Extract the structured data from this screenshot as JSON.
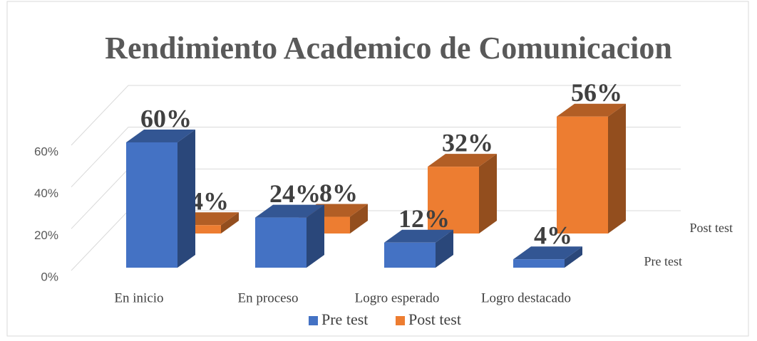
{
  "chart_data": {
    "type": "bar3d",
    "title": "Rendimiento Academico de Comunicacion",
    "categories": [
      "En inicio",
      "En proceso",
      "Logro esperado",
      "Logro destacado"
    ],
    "series": [
      {
        "name": "Pre test",
        "color": "#4472c4",
        "values": [
          60,
          24,
          12,
          4
        ],
        "value_labels": [
          "60%",
          "24%",
          "12%",
          "4%"
        ]
      },
      {
        "name": "Post test",
        "color": "#ed7d31",
        "values": [
          4,
          8,
          32,
          56
        ],
        "value_labels": [
          "4%",
          "8%",
          "32%",
          "56%"
        ]
      }
    ],
    "ylim": [
      0,
      60
    ],
    "yticks": [
      {
        "value": 0,
        "label": "0%"
      },
      {
        "value": 20,
        "label": "20%"
      },
      {
        "value": 40,
        "label": "40%"
      },
      {
        "value": 60,
        "label": "60%"
      }
    ],
    "grid": true,
    "legend": "bottom"
  }
}
